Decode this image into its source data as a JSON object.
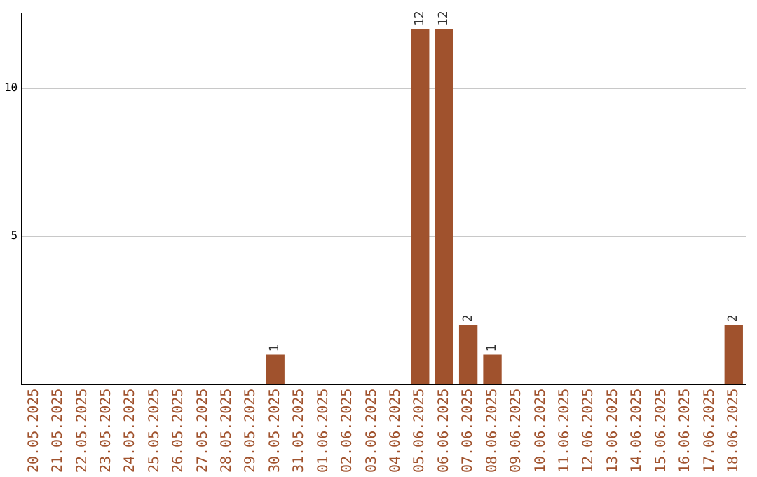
{
  "chart_data": {
    "type": "bar",
    "categories": [
      "20.05.2025",
      "21.05.2025",
      "22.05.2025",
      "23.05.2025",
      "24.05.2025",
      "25.05.2025",
      "26.05.2025",
      "27.05.2025",
      "28.05.2025",
      "29.05.2025",
      "30.05.2025",
      "31.05.2025",
      "01.06.2025",
      "02.06.2025",
      "03.06.2025",
      "04.06.2025",
      "05.06.2025",
      "06.06.2025",
      "07.06.2025",
      "08.06.2025",
      "09.06.2025",
      "10.06.2025",
      "11.06.2025",
      "12.06.2025",
      "13.06.2025",
      "14.06.2025",
      "15.06.2025",
      "16.06.2025",
      "17.06.2025",
      "18.06.2025"
    ],
    "values": [
      0,
      0,
      0,
      0,
      0,
      0,
      0,
      0,
      0,
      0,
      1,
      0,
      0,
      0,
      0,
      0,
      12,
      12,
      2,
      1,
      0,
      0,
      0,
      0,
      0,
      0,
      0,
      0,
      0,
      2
    ],
    "value_labels": [
      null,
      null,
      null,
      null,
      null,
      null,
      null,
      null,
      null,
      null,
      "1",
      null,
      null,
      null,
      null,
      null,
      "12",
      "12",
      "2",
      "1",
      null,
      null,
      null,
      null,
      null,
      null,
      null,
      null,
      null,
      "2"
    ],
    "color": "#a0522d",
    "ylim": [
      0,
      12.5
    ],
    "yticks": [
      5,
      10
    ],
    "grid": "y",
    "legend": false
  }
}
